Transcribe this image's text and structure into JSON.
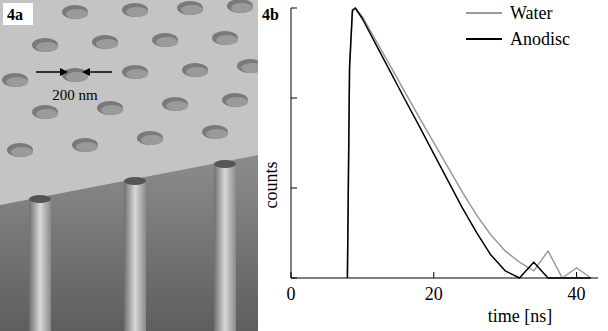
{
  "figure": {
    "panel_a": {
      "label": "4a",
      "annotation": "200 nm"
    }
  },
  "chart_data": {
    "type": "line",
    "title": "4b",
    "x_label": "time [ns]",
    "y_label": "counts",
    "x": [
      7.9,
      8.2,
      8.6,
      9,
      10,
      12,
      14,
      16,
      18,
      20,
      22,
      24,
      26,
      28,
      30,
      32,
      34,
      36,
      38,
      40,
      42
    ],
    "series": [
      {
        "name": "Water",
        "color": "#9a9a9a",
        "values": [
          1,
          200,
          900,
          1000,
          800,
          420,
          220,
          115,
          60,
          32,
          17,
          9,
          5,
          3,
          2,
          1.5,
          1.2,
          2,
          1,
          1.3,
          1
        ]
      },
      {
        "name": "Anodisc",
        "color": "#000000",
        "values": [
          1,
          220,
          950,
          1000,
          760,
          380,
          190,
          95,
          48,
          24,
          12,
          6,
          3.2,
          1.8,
          1.2,
          1,
          1.5,
          1,
          1,
          1,
          1
        ]
      }
    ],
    "xlim": [
      0,
      43
    ],
    "xticks": [
      0,
      20,
      40
    ],
    "ylim": [
      1,
      1000
    ],
    "yticks": [
      1,
      10,
      100,
      1000
    ],
    "log": "y",
    "tick_labels": "x",
    "legend": "top-right",
    "grid": false
  }
}
